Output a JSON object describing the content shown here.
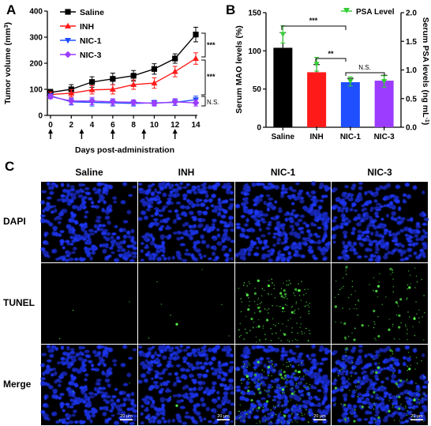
{
  "colors": {
    "saline": "#000000",
    "inh": "#ff1a1a",
    "nic1": "#1f4fff",
    "nic3": "#9b3cff",
    "psa": "#33cc33",
    "panel_bg": "#000000"
  },
  "panel_a": {
    "label": "A",
    "ylabel": "Tumor volume (mm",
    "ylabel_sup": "3",
    "ylabel_end": ")",
    "xlabel": "Days post-administration",
    "sig_top": "***",
    "sig_mid": "***",
    "sig_bottom": "N.S."
  },
  "panel_b": {
    "label": "B",
    "ylabel_left": "Serum MAO levels (%)",
    "ylabel_right": "Serum PSA levels (ng mL",
    "ylabel_right_sup": "-1",
    "ylabel_right_end": ")",
    "legend": "PSA Level",
    "sig_1": "***",
    "sig_2": "**",
    "sig_3": "N.S."
  },
  "panel_c": {
    "label": "C",
    "columns": [
      "Saline",
      "INH",
      "NIC-1",
      "NIC-3"
    ],
    "rows": [
      "DAPI",
      "TUNEL",
      "Merge"
    ],
    "scale_bar": "20 μm"
  },
  "chart_data": [
    {
      "type": "line",
      "x": [
        0,
        2,
        4,
        6,
        8,
        10,
        12,
        14
      ],
      "xlim": [
        0,
        14
      ],
      "ylim": [
        0,
        400
      ],
      "xticks": [
        "0",
        "2",
        "4",
        "6",
        "8",
        "10",
        "12",
        "14"
      ],
      "yticks": [
        "0",
        "100",
        "200",
        "300",
        "400"
      ],
      "treatment_days": [
        0,
        3,
        6,
        9,
        12
      ],
      "series": [
        {
          "name": "Saline",
          "key": "saline",
          "marker": "square",
          "values": [
            88,
            100,
            128,
            140,
            152,
            178,
            218,
            310
          ],
          "errors": [
            12,
            18,
            20,
            22,
            20,
            20,
            18,
            28
          ]
        },
        {
          "name": "INH",
          "key": "inh",
          "marker": "triangle",
          "values": [
            80,
            85,
            98,
            100,
            118,
            124,
            168,
            218
          ],
          "errors": [
            10,
            14,
            16,
            18,
            18,
            20,
            20,
            22
          ]
        },
        {
          "name": "NIC-1",
          "key": "nic1",
          "marker": "triangle-down",
          "values": [
            75,
            52,
            50,
            48,
            46,
            48,
            50,
            60
          ],
          "errors": [
            8,
            12,
            14,
            12,
            10,
            10,
            12,
            14
          ]
        },
        {
          "name": "NIC-3",
          "key": "nic3",
          "marker": "diamond",
          "values": [
            72,
            55,
            55,
            52,
            50,
            46,
            52,
            48
          ],
          "errors": [
            8,
            12,
            14,
            12,
            10,
            10,
            12,
            12
          ]
        }
      ]
    },
    {
      "type": "bar",
      "categories": [
        "Saline",
        "INH",
        "NIC-1",
        "NIC-3"
      ],
      "keys": [
        "saline",
        "inh",
        "nic1",
        "nic3"
      ],
      "values": [
        104,
        72,
        59,
        61
      ],
      "errors": [
        20,
        10,
        5,
        7
      ],
      "ylim": [
        0,
        150
      ],
      "yticks": [
        "0",
        "50",
        "100",
        "150"
      ],
      "secondary": {
        "name": "PSA Level",
        "values": [
          1.62,
          1.1,
          0.8,
          0.8
        ],
        "errors": [
          0.15,
          0.12,
          0.08,
          0.1
        ],
        "ylim": [
          0,
          2.0
        ],
        "yticks": [
          "0.0",
          "0.5",
          "1.0",
          "1.5",
          "2.0"
        ]
      }
    }
  ]
}
